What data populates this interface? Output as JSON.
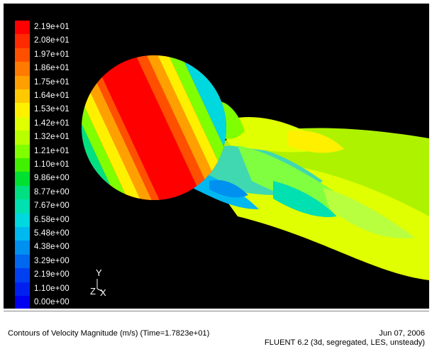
{
  "legend": {
    "labels": [
      "2.19e+01",
      "2.08e+01",
      "1.97e+01",
      "1.86e+01",
      "1.75e+01",
      "1.64e+01",
      "1.53e+01",
      "1.42e+01",
      "1.32e+01",
      "1.21e+01",
      "1.10e+01",
      "9.86e+00",
      "8.77e+00",
      "7.67e+00",
      "6.58e+00",
      "5.48e+00",
      "4.38e+00",
      "3.29e+00",
      "2.19e+00",
      "1.10e+00",
      "0.00e+00"
    ],
    "colors": [
      "#ff0000",
      "#ff2a00",
      "#ff5000",
      "#ff7a00",
      "#ffa000",
      "#ffc800",
      "#fff000",
      "#e0ff00",
      "#b8ff00",
      "#80ff00",
      "#40f000",
      "#00e030",
      "#00e080",
      "#00e0b0",
      "#00d8e0",
      "#00b8f0",
      "#0090f0",
      "#0068f0",
      "#0040f0",
      "#0020f0",
      "#0000f0"
    ]
  },
  "axes": {
    "y": "Y",
    "z": "Z",
    "x": "X"
  },
  "footer": {
    "description": "Contours of Velocity Magnitude (m/s)  (Time=1.7823e+01)",
    "date": "Jun 07, 2006",
    "version": "FLUENT 6.2 (3d, segregated, LES, unsteady)"
  }
}
